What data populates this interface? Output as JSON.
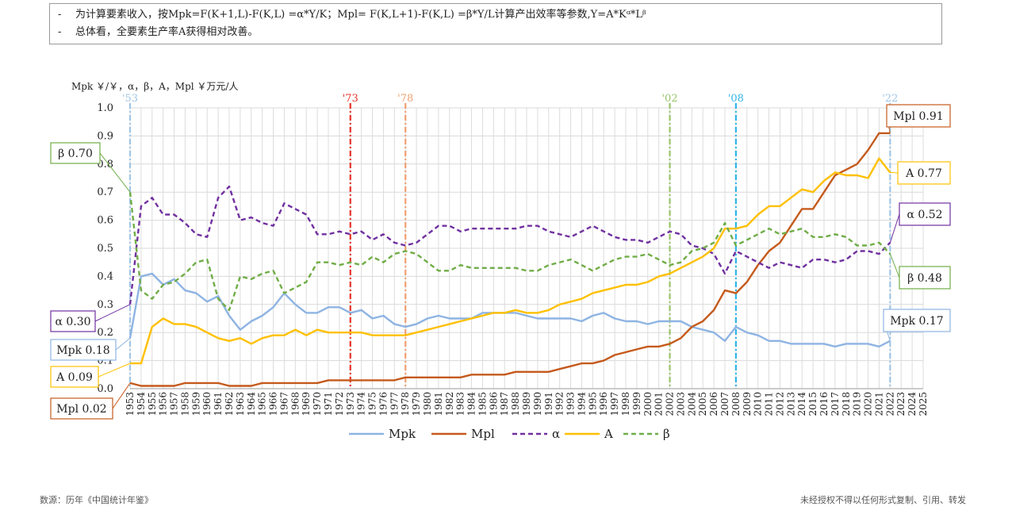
{
  "notes": [
    "为计算要素收入，按Mpk=F(K+1,L)-F(K,L) =α*Y/K；Mpl= F(K,L+1)-F(K,L) =β*Y/L计算产出效率等参数,Y=A*Kᵅ*Lᵝ",
    "总体看，全要素生产率A获得相对改善。"
  ],
  "footer": {
    "source": "数源：历年《中国统计年鉴》",
    "copyright": "未经授权不得以任何形式复制、引用、转发"
  },
  "chart_data": {
    "type": "line",
    "ylabel": "Mpk ￥/￥，α，β，A，Mpl ￥万元/人",
    "ylim": [
      0,
      1.0
    ],
    "yticks": [
      "0.0",
      "0.1",
      "0.2",
      "0.3",
      "0.4",
      "0.5",
      "0.6",
      "0.7",
      "0.8",
      "0.9",
      "1.0"
    ],
    "x": [
      1953,
      1954,
      1955,
      1956,
      1957,
      1958,
      1959,
      1960,
      1961,
      1962,
      1963,
      1964,
      1965,
      1966,
      1967,
      1968,
      1969,
      1970,
      1971,
      1972,
      1973,
      1974,
      1975,
      1976,
      1977,
      1978,
      1979,
      1980,
      1981,
      1982,
      1983,
      1984,
      1985,
      1986,
      1987,
      1988,
      1989,
      1990,
      1991,
      1992,
      1993,
      1994,
      1995,
      1996,
      1997,
      1998,
      1999,
      2000,
      2001,
      2002,
      2003,
      2004,
      2005,
      2006,
      2007,
      2008,
      2009,
      2010,
      2011,
      2012,
      2013,
      2014,
      2015,
      2016,
      2017,
      2018,
      2019,
      2020,
      2021,
      2022,
      2023,
      2024,
      2025
    ],
    "grid": true,
    "legend_position": "bottom",
    "vlines": [
      {
        "label": "'53",
        "x": 1953,
        "color": "#9fc6e6"
      },
      {
        "label": "'73",
        "x": 1973,
        "color": "#e8332a"
      },
      {
        "label": "'78",
        "x": 1978,
        "color": "#f0a070"
      },
      {
        "label": "'02",
        "x": 2002,
        "color": "#9ac46a"
      },
      {
        "label": "'08",
        "x": 2008,
        "color": "#2fb5e8"
      },
      {
        "label": "'22",
        "x": 2022,
        "color": "#9fc6e6"
      }
    ],
    "series": [
      {
        "name": "Mpk",
        "color": "#8eb4e3",
        "dash": "",
        "values": [
          0.18,
          0.4,
          0.41,
          0.37,
          0.39,
          0.35,
          0.34,
          0.31,
          0.33,
          0.26,
          0.21,
          0.24,
          0.26,
          0.29,
          0.34,
          0.3,
          0.27,
          0.27,
          0.29,
          0.29,
          0.27,
          0.28,
          0.25,
          0.26,
          0.23,
          0.22,
          0.23,
          0.25,
          0.26,
          0.25,
          0.25,
          0.25,
          0.27,
          0.27,
          0.27,
          0.27,
          0.26,
          0.25,
          0.25,
          0.25,
          0.25,
          0.24,
          0.26,
          0.27,
          0.25,
          0.24,
          0.24,
          0.23,
          0.24,
          0.24,
          0.24,
          0.22,
          0.21,
          0.2,
          0.17,
          0.22,
          0.2,
          0.19,
          0.17,
          0.17,
          0.16,
          0.16,
          0.16,
          0.16,
          0.15,
          0.16,
          0.16,
          0.16,
          0.15,
          0.17,
          null,
          null,
          null
        ]
      },
      {
        "name": "Mpl",
        "color": "#c55a1c",
        "dash": "",
        "values": [
          0.02,
          0.01,
          0.01,
          0.01,
          0.01,
          0.02,
          0.02,
          0.02,
          0.02,
          0.01,
          0.01,
          0.01,
          0.02,
          0.02,
          0.02,
          0.02,
          0.02,
          0.02,
          0.03,
          0.03,
          0.03,
          0.03,
          0.03,
          0.03,
          0.03,
          0.04,
          0.04,
          0.04,
          0.04,
          0.04,
          0.04,
          0.05,
          0.05,
          0.05,
          0.05,
          0.06,
          0.06,
          0.06,
          0.06,
          0.07,
          0.08,
          0.09,
          0.09,
          0.1,
          0.12,
          0.13,
          0.14,
          0.15,
          0.15,
          0.16,
          0.18,
          0.22,
          0.24,
          0.28,
          0.35,
          0.34,
          0.38,
          0.44,
          0.49,
          0.52,
          0.58,
          0.64,
          0.64,
          0.7,
          0.76,
          0.78,
          0.8,
          0.85,
          0.91,
          0.91,
          null,
          null,
          null
        ]
      },
      {
        "name": "α",
        "color": "#7030a0",
        "dash": "6 4",
        "values": [
          0.3,
          0.65,
          0.68,
          0.62,
          0.62,
          0.59,
          0.55,
          0.54,
          0.68,
          0.72,
          0.6,
          0.61,
          0.59,
          0.58,
          0.66,
          0.64,
          0.62,
          0.55,
          0.55,
          0.56,
          0.55,
          0.56,
          0.53,
          0.55,
          0.52,
          0.51,
          0.52,
          0.55,
          0.58,
          0.58,
          0.56,
          0.57,
          0.57,
          0.57,
          0.57,
          0.57,
          0.58,
          0.58,
          0.56,
          0.55,
          0.54,
          0.56,
          0.58,
          0.56,
          0.54,
          0.53,
          0.53,
          0.52,
          0.54,
          0.56,
          0.55,
          0.51,
          0.5,
          0.48,
          0.41,
          0.49,
          0.47,
          0.45,
          0.43,
          0.45,
          0.44,
          0.43,
          0.46,
          0.46,
          0.45,
          0.46,
          0.49,
          0.49,
          0.48,
          0.52,
          null,
          null,
          null
        ]
      },
      {
        "name": "A",
        "color": "#ffc000",
        "dash": "",
        "values": [
          0.09,
          0.09,
          0.22,
          0.25,
          0.23,
          0.23,
          0.22,
          0.2,
          0.18,
          0.17,
          0.18,
          0.16,
          0.18,
          0.19,
          0.19,
          0.21,
          0.19,
          0.21,
          0.2,
          0.2,
          0.2,
          0.2,
          0.19,
          0.19,
          0.19,
          0.19,
          0.2,
          0.21,
          0.22,
          0.23,
          0.24,
          0.25,
          0.26,
          0.27,
          0.27,
          0.28,
          0.27,
          0.27,
          0.28,
          0.3,
          0.31,
          0.32,
          0.34,
          0.35,
          0.36,
          0.37,
          0.37,
          0.38,
          0.4,
          0.41,
          0.43,
          0.45,
          0.47,
          0.5,
          0.57,
          0.57,
          0.58,
          0.62,
          0.65,
          0.65,
          0.68,
          0.71,
          0.7,
          0.74,
          0.77,
          0.76,
          0.76,
          0.75,
          0.82,
          0.77,
          null,
          null,
          null
        ]
      },
      {
        "name": "β",
        "color": "#70ad47",
        "dash": "6 4",
        "values": [
          0.7,
          0.35,
          0.32,
          0.37,
          0.38,
          0.41,
          0.45,
          0.46,
          0.32,
          0.28,
          0.4,
          0.39,
          0.41,
          0.42,
          0.34,
          0.36,
          0.38,
          0.45,
          0.45,
          0.44,
          0.45,
          0.44,
          0.47,
          0.45,
          0.48,
          0.49,
          0.48,
          0.45,
          0.42,
          0.42,
          0.44,
          0.43,
          0.43,
          0.43,
          0.43,
          0.43,
          0.42,
          0.42,
          0.44,
          0.45,
          0.46,
          0.44,
          0.42,
          0.44,
          0.46,
          0.47,
          0.47,
          0.48,
          0.46,
          0.44,
          0.45,
          0.49,
          0.5,
          0.52,
          0.59,
          0.51,
          0.53,
          0.55,
          0.57,
          0.55,
          0.56,
          0.57,
          0.54,
          0.54,
          0.55,
          0.54,
          0.51,
          0.51,
          0.52,
          0.48,
          null,
          null,
          null
        ]
      }
    ],
    "annotations": [
      {
        "text": "β 0.70",
        "series": "β",
        "end": "start",
        "color": "#70ad47"
      },
      {
        "text": "α 0.30",
        "series": "α",
        "end": "start",
        "color": "#7030a0"
      },
      {
        "text": "Mpk 0.18",
        "series": "Mpk",
        "end": "start",
        "color": "#8eb4e3"
      },
      {
        "text": "A 0.09",
        "series": "A",
        "end": "start",
        "color": "#ffc000"
      },
      {
        "text": "Mpl 0.02",
        "series": "Mpl",
        "end": "start",
        "color": "#c55a1c"
      },
      {
        "text": "Mpl 0.91",
        "series": "Mpl",
        "end": "end",
        "color": "#c55a1c"
      },
      {
        "text": "A 0.77",
        "series": "A",
        "end": "end",
        "color": "#ffc000"
      },
      {
        "text": "α 0.52",
        "series": "α",
        "end": "end",
        "color": "#7030a0"
      },
      {
        "text": "β 0.48",
        "series": "β",
        "end": "end",
        "color": "#70ad47"
      },
      {
        "text": "Mpk 0.17",
        "series": "Mpk",
        "end": "end",
        "color": "#8eb4e3"
      }
    ]
  }
}
